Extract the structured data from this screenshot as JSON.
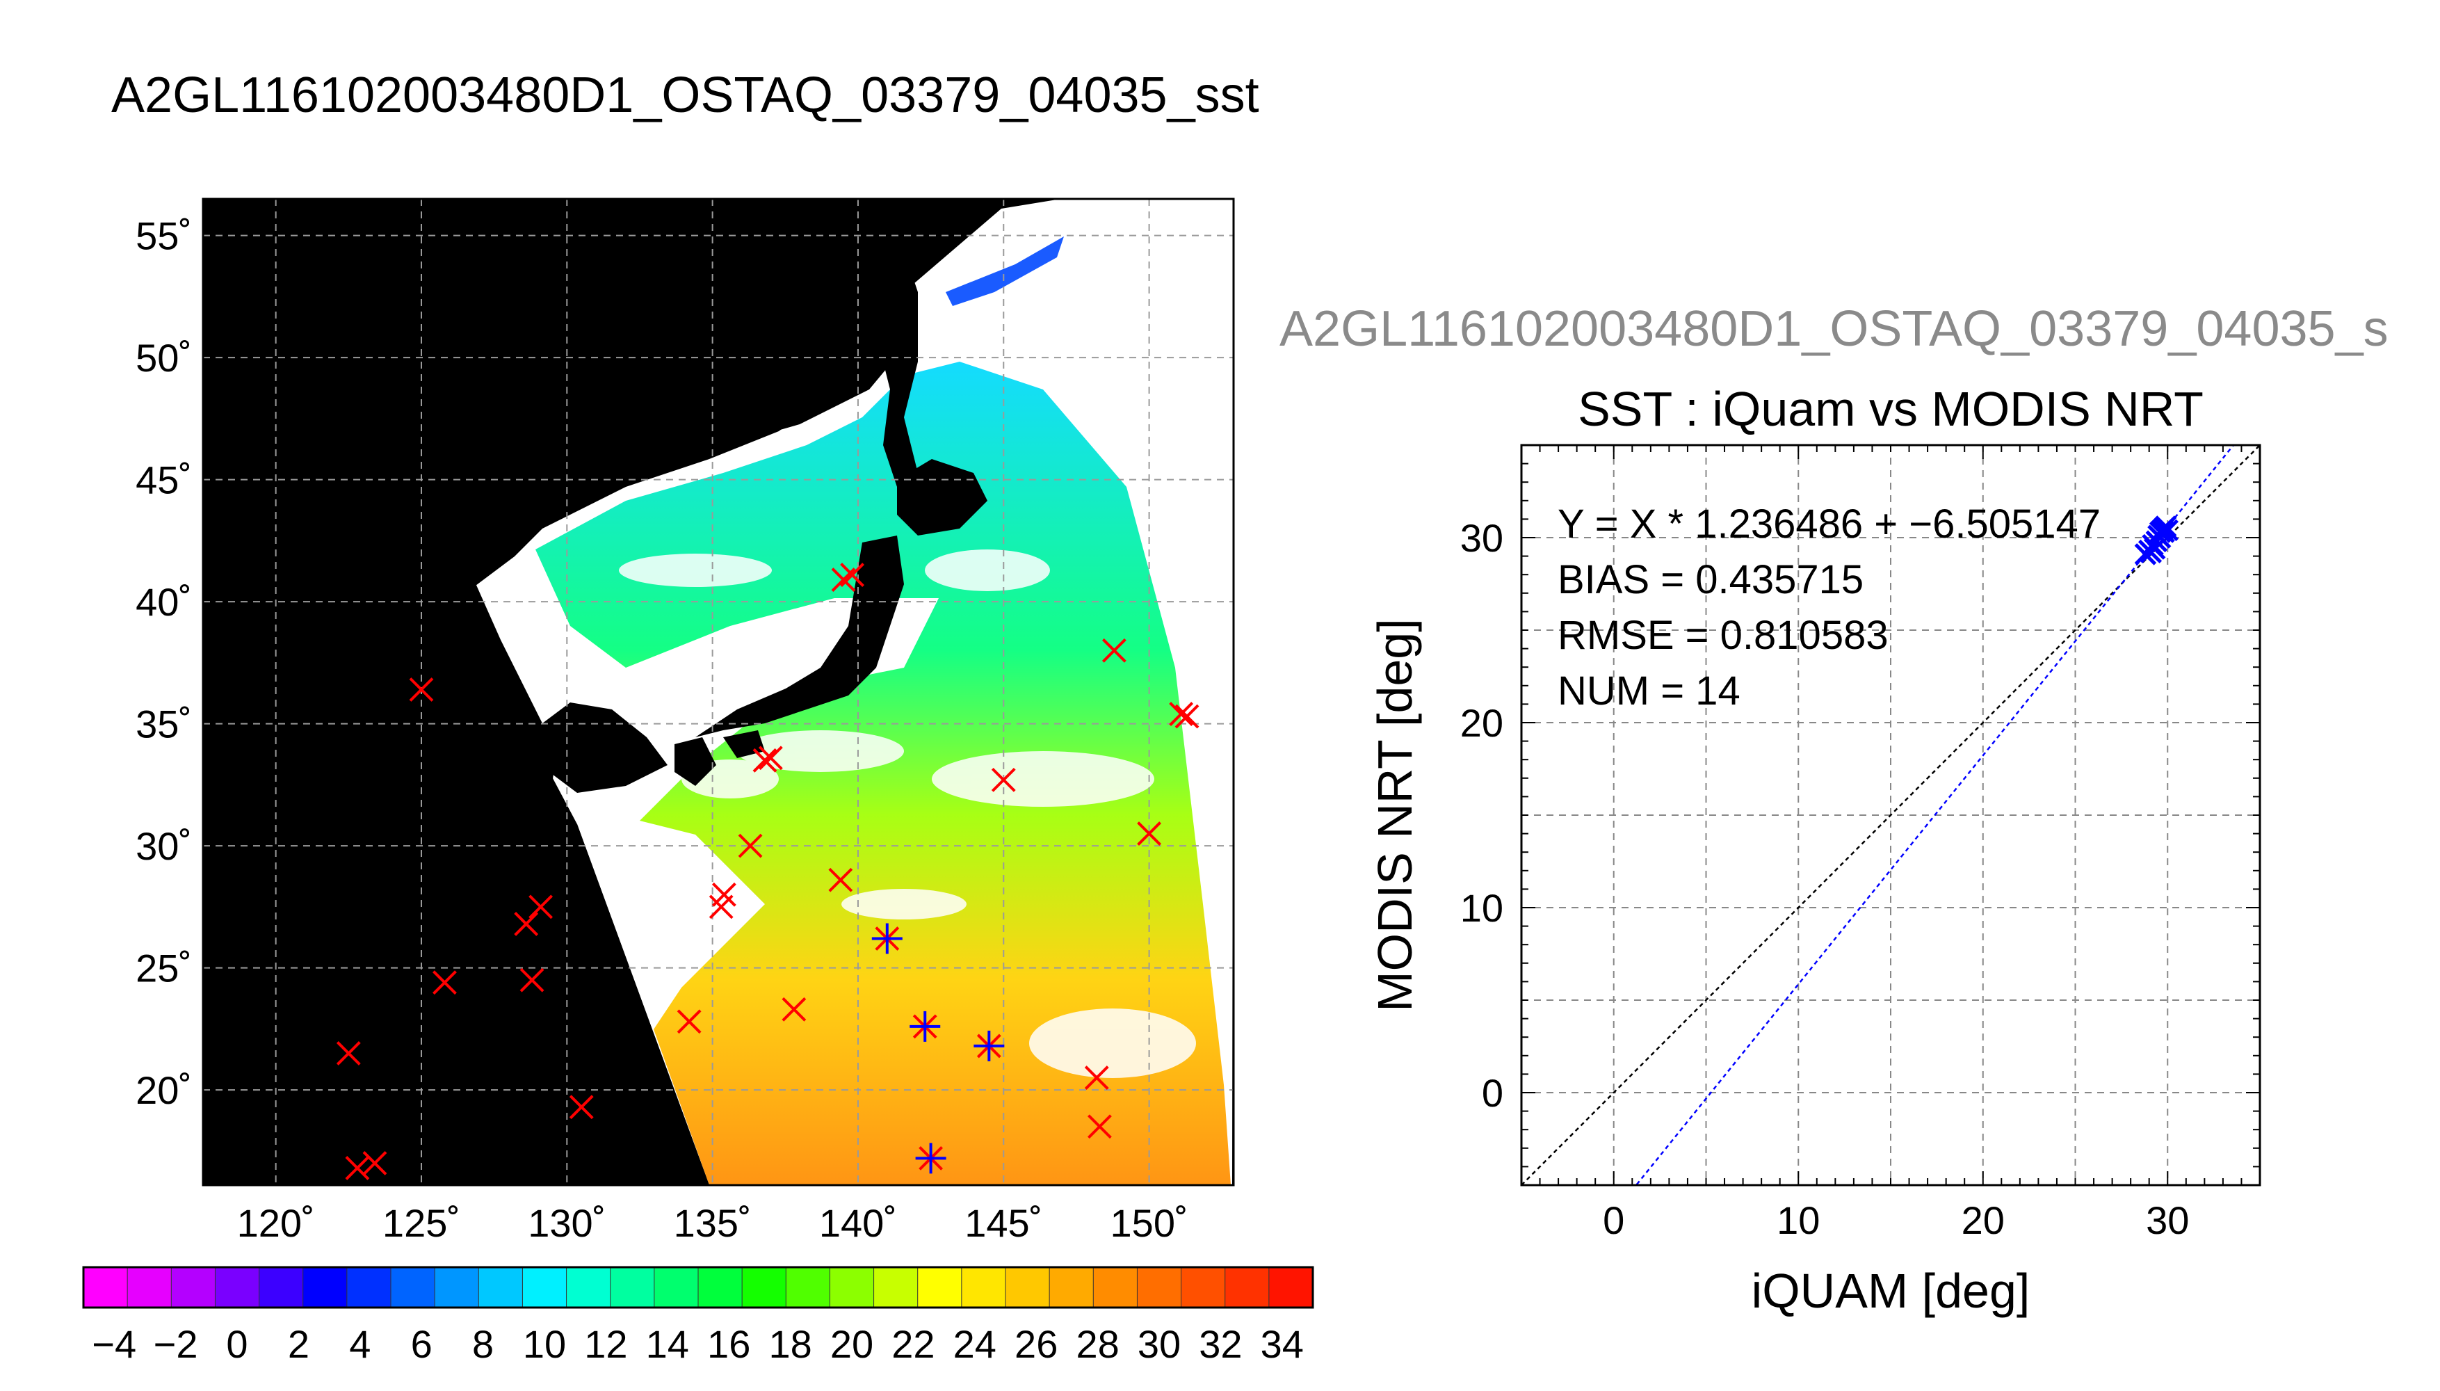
{
  "title": "A2GL116102003480D1_OSTAQ_03379_04035_sst",
  "map": {
    "lon_ticks": [
      "120˚",
      "125˚",
      "130˚",
      "135˚",
      "140˚",
      "145˚",
      "150˚"
    ],
    "lat_ticks": [
      "55˚",
      "50˚",
      "45˚",
      "40˚",
      "35˚",
      "30˚",
      "25˚",
      "20˚"
    ],
    "colorbar": {
      "labels": [
        "−4",
        "−2",
        "0",
        "2",
        "4",
        "6",
        "8",
        "10",
        "12",
        "14",
        "16",
        "18",
        "20",
        "22",
        "24",
        "26",
        "28",
        "30",
        "32",
        "34"
      ],
      "range": [
        -5,
        35
      ],
      "colors": [
        "#ff00ff",
        "#e600ff",
        "#b400ff",
        "#7a00ff",
        "#3c00ff",
        "#0000ff",
        "#0030ff",
        "#0064ff",
        "#0096ff",
        "#00c8ff",
        "#00f0ff",
        "#00ffd2",
        "#00ffa0",
        "#00ff6e",
        "#00ff3c",
        "#14ff00",
        "#50ff00",
        "#8cff00",
        "#c8ff00",
        "#ffff00",
        "#ffe600",
        "#ffc800",
        "#ffaa00",
        "#ff8c00",
        "#ff6e00",
        "#ff5000",
        "#ff3200",
        "#ff1400"
      ]
    },
    "colors": {
      "background": "#000000",
      "swath": "#ffffff",
      "marker_red": "#ff0000",
      "marker_blue": "#0000ff"
    },
    "red_markers": [
      {
        "lon": 122.5,
        "lat": 21.5
      },
      {
        "lon": 122.8,
        "lat": 16.8
      },
      {
        "lon": 123.4,
        "lat": 17.0
      },
      {
        "lon": 125.0,
        "lat": 36.4
      },
      {
        "lon": 125.8,
        "lat": 24.4
      },
      {
        "lon": 128.6,
        "lat": 26.8
      },
      {
        "lon": 129.1,
        "lat": 27.5
      },
      {
        "lon": 128.8,
        "lat": 24.5
      },
      {
        "lon": 130.5,
        "lat": 19.3
      },
      {
        "lon": 134.2,
        "lat": 22.8
      },
      {
        "lon": 135.3,
        "lat": 27.5
      },
      {
        "lon": 135.4,
        "lat": 28.0
      },
      {
        "lon": 136.3,
        "lat": 30.0
      },
      {
        "lon": 136.8,
        "lat": 33.5
      },
      {
        "lon": 137.0,
        "lat": 33.6
      },
      {
        "lon": 137.8,
        "lat": 23.3
      },
      {
        "lon": 139.4,
        "lat": 28.6
      },
      {
        "lon": 139.5,
        "lat": 40.9
      },
      {
        "lon": 139.8,
        "lat": 41.1
      },
      {
        "lon": 145.0,
        "lat": 32.7
      },
      {
        "lon": 148.2,
        "lat": 20.5
      },
      {
        "lon": 148.3,
        "lat": 18.5
      },
      {
        "lon": 148.8,
        "lat": 38.0
      },
      {
        "lon": 150.0,
        "lat": 30.5
      },
      {
        "lon": 151.1,
        "lat": 35.4
      },
      {
        "lon": 151.3,
        "lat": 35.3
      }
    ],
    "matchup_markers": [
      {
        "lon": 141.0,
        "lat": 26.2
      },
      {
        "lon": 142.3,
        "lat": 22.6
      },
      {
        "lon": 144.5,
        "lat": 21.8
      },
      {
        "lon": 142.5,
        "lat": 17.2
      }
    ]
  },
  "scatter": {
    "file_label": "A2GL116102003480D1_OSTAQ_03379_04035_s",
    "title": "SST : iQuam vs MODIS NRT",
    "xlabel": "iQUAM [deg]",
    "ylabel": "MODIS NRT [deg]",
    "xticks": [
      "0",
      "10",
      "20",
      "30"
    ],
    "yticks": [
      "0",
      "10",
      "20",
      "30"
    ],
    "stats": [
      "Y = X * 1.236486 + −6.505147",
      "BIAS = 0.435715",
      "RMSE = 0.810583",
      "NUM = 14"
    ]
  },
  "chart_data": {
    "type": "scatter",
    "title": "SST : iQuam vs MODIS NRT",
    "xlabel": "iQUAM [deg]",
    "ylabel": "MODIS NRT [deg]",
    "xlim": [
      -5,
      35
    ],
    "ylim": [
      -5,
      35
    ],
    "grid": true,
    "points": [
      [
        28.8,
        29.1
      ],
      [
        29.0,
        29.3
      ],
      [
        29.1,
        29.2
      ],
      [
        29.2,
        29.6
      ],
      [
        29.4,
        29.8
      ],
      [
        29.5,
        30.1
      ],
      [
        29.6,
        30.3
      ],
      [
        29.7,
        30.4
      ],
      [
        29.8,
        30.5
      ],
      [
        29.9,
        30.6
      ],
      [
        30.0,
        30.4
      ],
      [
        29.8,
        30.3
      ],
      [
        29.3,
        29.4
      ],
      [
        29.6,
        30.0
      ]
    ],
    "fit": {
      "slope": 1.236486,
      "intercept": -6.505147
    },
    "identity_line": true
  }
}
